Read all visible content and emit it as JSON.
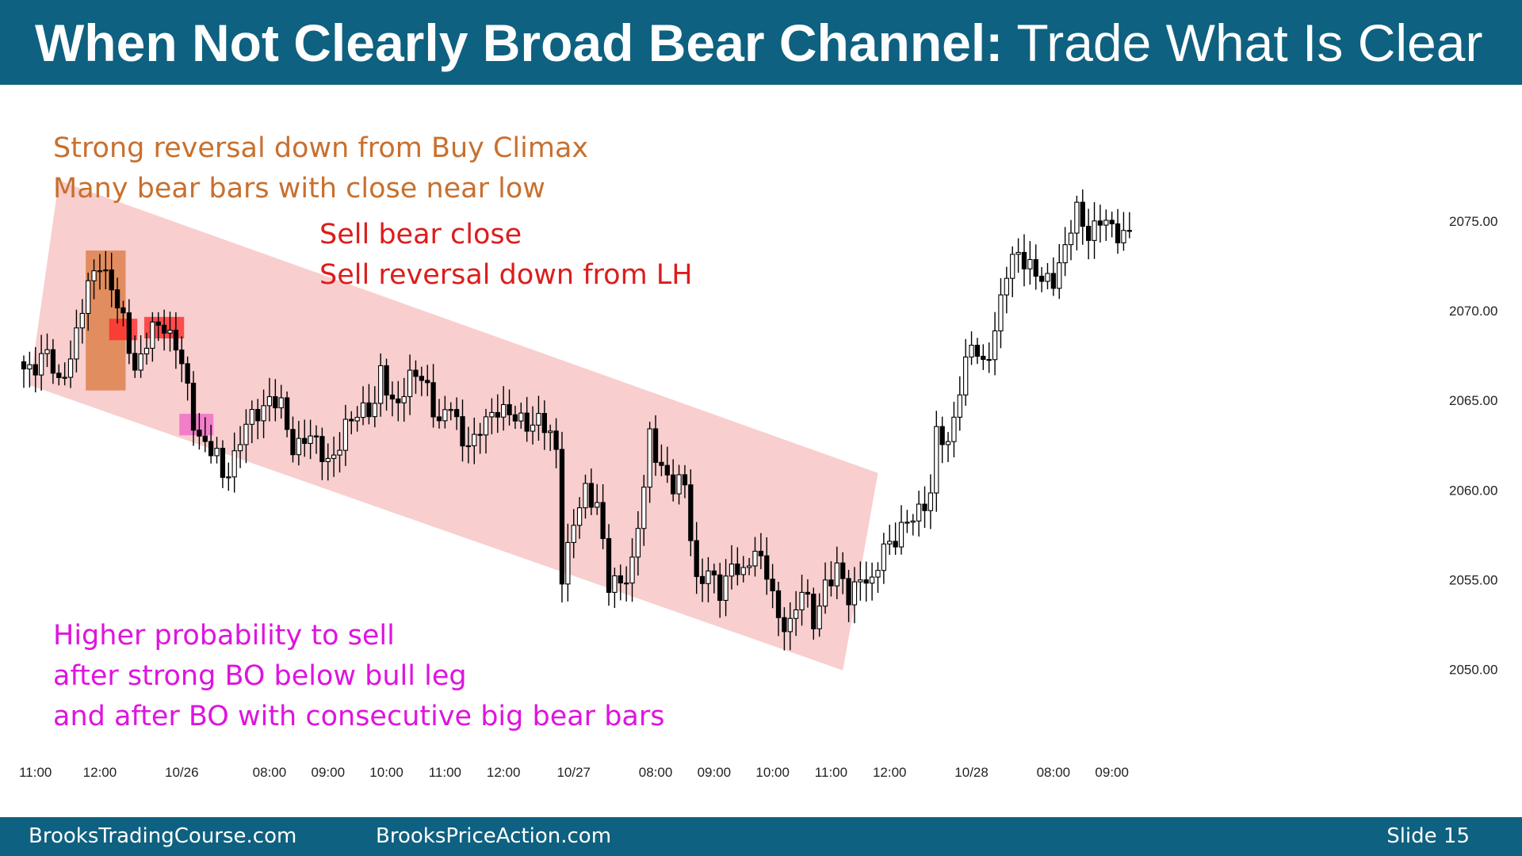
{
  "header": {
    "title_bold": "When Not Clearly Broad Bear Channel:",
    "title_regular": " Trade What Is Clear",
    "background": "#0e6180"
  },
  "footer": {
    "left": "BrooksTradingCourse.com",
    "middle": "BrooksPriceAction.com",
    "slide": "Slide  15"
  },
  "annotations": {
    "climax": [
      "Strong reversal down from Buy Climax",
      "Many bear bars with close near low"
    ],
    "sell": [
      "Sell bear close",
      "Sell reversal down from LH"
    ],
    "probability": [
      "Higher probability to sell",
      "after strong BO below bull leg",
      "and after BO with consecutive big bear bars"
    ]
  },
  "chart_data": {
    "type": "candlestick",
    "ylim": [
      2048.0,
      2078.0
    ],
    "y_ticks": [
      2050,
      2055,
      2060,
      2065,
      2070,
      2075
    ],
    "y_tick_labels": [
      "2050.00",
      "2055.00",
      "2060.00",
      "2065.00",
      "2070.00",
      "2075.00"
    ],
    "x_tick_labels": [
      "11:00",
      "12:00",
      "10/26",
      "08:00",
      "09:00",
      "10:00",
      "11:00",
      "12:00",
      "10/27",
      "08:00",
      "09:00",
      "10:00",
      "11:00",
      "12:00",
      "10/28",
      "08:00",
      "09:00"
    ],
    "x_tick_bar_index": [
      2,
      13,
      27,
      42,
      52,
      62,
      72,
      82,
      94,
      108,
      118,
      128,
      138,
      148,
      162,
      176,
      186
    ],
    "bar_count": 190,
    "close_anchors": [
      [
        0,
        2066.8
      ],
      [
        4,
        2067.5
      ],
      [
        6,
        2066.0
      ],
      [
        9,
        2068.5
      ],
      [
        11,
        2071.5
      ],
      [
        13,
        2073.0
      ],
      [
        15,
        2071.0
      ],
      [
        17,
        2069.5
      ],
      [
        19,
        2067.0
      ],
      [
        20,
        2067.2
      ],
      [
        22,
        2069.0
      ],
      [
        24,
        2069.5
      ],
      [
        27,
        2067.0
      ],
      [
        29,
        2064.0
      ],
      [
        31,
        2062.5
      ],
      [
        33,
        2061.8
      ],
      [
        34,
        2060.8
      ],
      [
        36,
        2062.0
      ],
      [
        38,
        2063.5
      ],
      [
        40,
        2064.5
      ],
      [
        42,
        2065.2
      ],
      [
        44,
        2064.5
      ],
      [
        46,
        2062.5
      ],
      [
        48,
        2063.0
      ],
      [
        50,
        2062.5
      ],
      [
        52,
        2061.8
      ],
      [
        54,
        2062.5
      ],
      [
        56,
        2064.0
      ],
      [
        58,
        2064.8
      ],
      [
        60,
        2064.5
      ],
      [
        61,
        2066.5
      ],
      [
        63,
        2065.0
      ],
      [
        65,
        2065.5
      ],
      [
        67,
        2066.5
      ],
      [
        69,
        2066.0
      ],
      [
        71,
        2063.5
      ],
      [
        73,
        2064.8
      ],
      [
        75,
        2063.0
      ],
      [
        77,
        2062.5
      ],
      [
        79,
        2064.0
      ],
      [
        81,
        2064.8
      ],
      [
        83,
        2064.0
      ],
      [
        85,
        2064.0
      ],
      [
        88,
        2063.8
      ],
      [
        90,
        2063.0
      ],
      [
        91,
        2062.4
      ],
      [
        92,
        2055.5
      ],
      [
        94,
        2058.0
      ],
      [
        96,
        2060.0
      ],
      [
        98,
        2059.5
      ],
      [
        100,
        2054.5
      ],
      [
        102,
        2055.0
      ],
      [
        104,
        2056.0
      ],
      [
        106,
        2060.0
      ],
      [
        107,
        2063.0
      ],
      [
        109,
        2061.5
      ],
      [
        111,
        2060.0
      ],
      [
        113,
        2060.5
      ],
      [
        115,
        2055.0
      ],
      [
        117,
        2055.2
      ],
      [
        119,
        2054.5
      ],
      [
        121,
        2056.0
      ],
      [
        123,
        2055.0
      ],
      [
        125,
        2057.0
      ],
      [
        127,
        2055.5
      ],
      [
        129,
        2052.5
      ],
      [
        131,
        2052.8
      ],
      [
        133,
        2054.5
      ],
      [
        135,
        2052.5
      ],
      [
        137,
        2055.0
      ],
      [
        139,
        2055.5
      ],
      [
        141,
        2054.0
      ],
      [
        143,
        2055.5
      ],
      [
        145,
        2054.5
      ],
      [
        147,
        2057.0
      ],
      [
        149,
        2057.5
      ],
      [
        151,
        2058.0
      ],
      [
        153,
        2059.0
      ],
      [
        155,
        2060.0
      ],
      [
        156,
        2063.0
      ],
      [
        158,
        2062.5
      ],
      [
        160,
        2066.0
      ],
      [
        162,
        2068.0
      ],
      [
        164,
        2067.0
      ],
      [
        166,
        2069.0
      ],
      [
        168,
        2072.0
      ],
      [
        170,
        2073.5
      ],
      [
        172,
        2072.5
      ],
      [
        174,
        2071.5
      ],
      [
        176,
        2072.0
      ],
      [
        178,
        2073.5
      ],
      [
        180,
        2075.5
      ],
      [
        182,
        2074.5
      ],
      [
        184,
        2075.0
      ],
      [
        186,
        2074.5
      ],
      [
        189,
        2074.5
      ]
    ],
    "bear_channel": {
      "upper_line": [
        [
          6,
          2077.3
        ],
        [
          146,
          2061.0
        ]
      ],
      "lower_line": [
        [
          1,
          2065.9
        ],
        [
          140,
          2050.0
        ]
      ],
      "color": "#f7c5c5"
    },
    "highlights": [
      {
        "name": "buy-climax-reversal",
        "bars": [
          11,
          17
        ],
        "y": [
          2065.6,
          2073.4
        ],
        "color": "#d9773a"
      },
      {
        "name": "bear-close-zone-1",
        "bars": [
          15,
          19
        ],
        "y": [
          2068.4,
          2069.6
        ],
        "color": "#ff2a2a"
      },
      {
        "name": "bear-close-zone-2",
        "bars": [
          21,
          27
        ],
        "y": [
          2068.5,
          2069.7
        ],
        "color": "#ff2a2a"
      },
      {
        "name": "lower-high-reversal",
        "bars": [
          27,
          32
        ],
        "y": [
          2063.1,
          2064.3
        ],
        "color": "#f06ac8"
      }
    ]
  }
}
